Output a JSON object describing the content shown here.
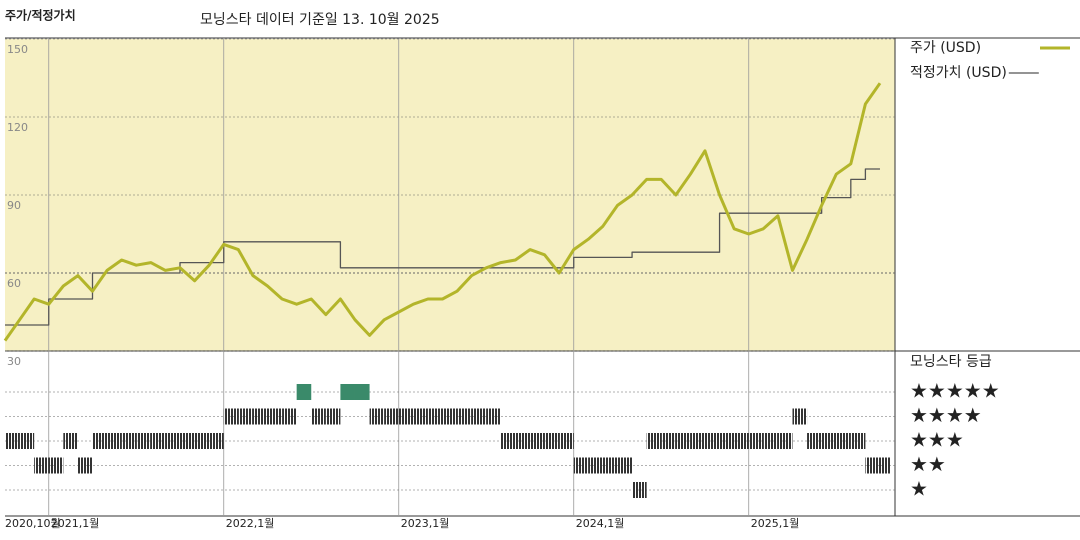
{
  "chart_data": {
    "type": "line",
    "title": "주가/적정가치",
    "subtitle": "모닝스타 데이터 기준일 13. 10월 2025",
    "x": [
      "2020-10",
      "2020-11",
      "2020-12",
      "2021-01",
      "2021-02",
      "2021-03",
      "2021-04",
      "2021-05",
      "2021-06",
      "2021-07",
      "2021-08",
      "2021-09",
      "2021-10",
      "2021-11",
      "2021-12",
      "2022-01",
      "2022-02",
      "2022-03",
      "2022-04",
      "2022-05",
      "2022-06",
      "2022-07",
      "2022-08",
      "2022-09",
      "2022-10",
      "2022-11",
      "2022-12",
      "2023-01",
      "2023-02",
      "2023-03",
      "2023-04",
      "2023-05",
      "2023-06",
      "2023-07",
      "2023-08",
      "2023-09",
      "2023-10",
      "2023-11",
      "2023-12",
      "2024-01",
      "2024-02",
      "2024-03",
      "2024-04",
      "2024-05",
      "2024-06",
      "2024-07",
      "2024-08",
      "2024-09",
      "2024-10",
      "2024-11",
      "2024-12",
      "2025-01",
      "2025-02",
      "2025-03",
      "2025-04",
      "2025-05",
      "2025-06",
      "2025-07",
      "2025-08",
      "2025-09",
      "2025-10"
    ],
    "series": [
      {
        "name": "주가 (USD)",
        "color": "#b3b52a",
        "values": [
          34,
          42,
          50,
          48,
          55,
          59,
          53,
          61,
          65,
          63,
          64,
          61,
          62,
          57,
          63,
          71,
          69,
          59,
          55,
          50,
          48,
          50,
          44,
          50,
          42,
          36,
          42,
          45,
          48,
          50,
          50,
          53,
          59,
          62,
          64,
          65,
          69,
          67,
          60,
          69,
          73,
          78,
          86,
          90,
          96,
          96,
          90,
          98,
          107,
          90,
          77,
          75,
          77,
          82,
          61,
          73,
          86,
          98,
          102,
          125,
          133
        ]
      },
      {
        "name": "적정가치 (USD)",
        "color": "#555555",
        "step": true,
        "values": [
          40,
          40,
          40,
          50,
          50,
          50,
          60,
          60,
          60,
          60,
          60,
          60,
          64,
          64,
          64,
          72,
          72,
          72,
          72,
          72,
          72,
          72,
          72,
          62,
          62,
          62,
          62,
          62,
          62,
          62,
          62,
          62,
          62,
          62,
          62,
          62,
          62,
          62,
          62,
          66,
          66,
          66,
          66,
          68,
          68,
          68,
          68,
          68,
          68,
          83,
          83,
          83,
          83,
          83,
          83,
          83,
          89,
          89,
          96,
          100,
          100
        ]
      }
    ],
    "ylim": [
      30,
      150
    ],
    "yticks": [
      30,
      60,
      90,
      120,
      150
    ],
    "xticks": [
      {
        "value": "2020-10",
        "label": "2020,10월"
      },
      {
        "value": "2021-01",
        "label": "2021,1월"
      },
      {
        "value": "2022-01",
        "label": "2022,1월"
      },
      {
        "value": "2023-01",
        "label": "2023,1월"
      },
      {
        "value": "2024-01",
        "label": "2024,1월"
      },
      {
        "value": "2025-01",
        "label": "2025,1월"
      }
    ],
    "grid": true,
    "background": "#f6f0c4",
    "rating": {
      "title": "모닝스타 등급",
      "labels": [
        "★",
        "★★",
        "★★★",
        "★★★★",
        "★★★★★"
      ],
      "color": "#333333",
      "top_color": "#3a8a6a",
      "values": [
        3,
        3,
        2,
        2,
        3,
        2,
        3,
        3,
        3,
        3,
        3,
        3,
        3,
        3,
        3,
        4,
        4,
        4,
        4,
        4,
        5,
        4,
        4,
        5,
        5,
        4,
        4,
        4,
        4,
        4,
        4,
        4,
        4,
        4,
        3,
        3,
        3,
        3,
        3,
        2,
        2,
        2,
        2,
        1,
        3,
        3,
        3,
        3,
        3,
        3,
        3,
        3,
        3,
        3,
        4,
        3,
        3,
        3,
        3,
        2,
        2
      ]
    }
  }
}
